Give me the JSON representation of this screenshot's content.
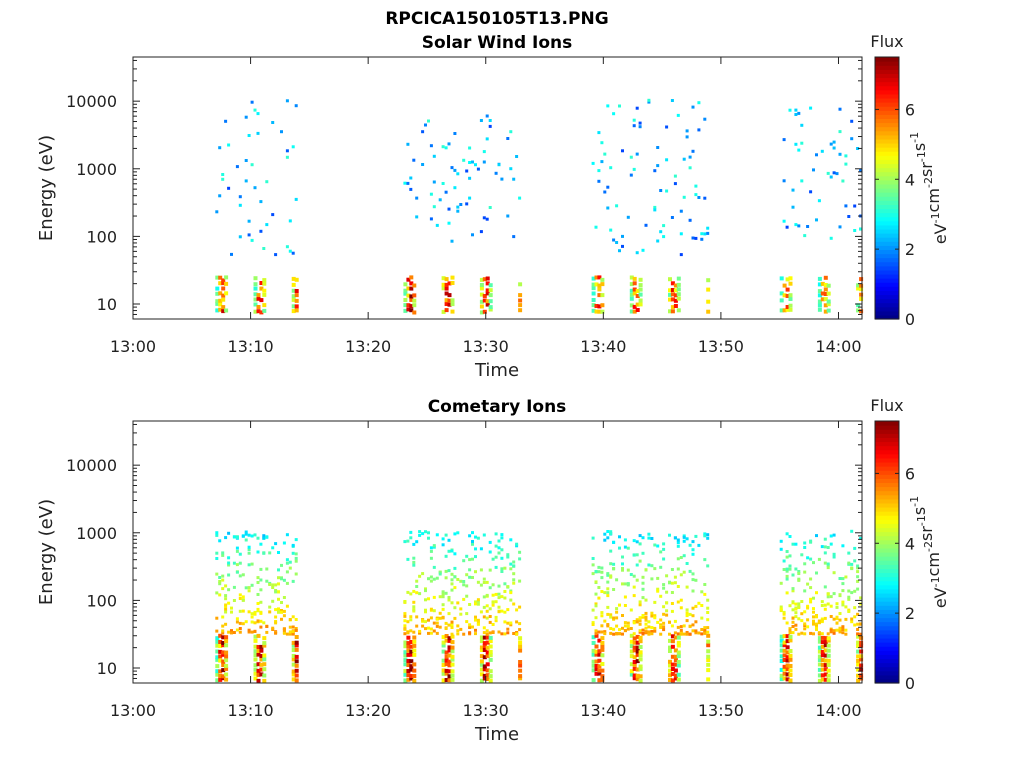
{
  "figure_title": "RPCICA150105T13.PNG",
  "chart_data": [
    {
      "type": "heatmap",
      "title": "Solar Wind Ions",
      "xlabel": "Time",
      "ylabel": "Energy (eV)",
      "y_scale": "log",
      "ylim": [
        6,
        45000
      ],
      "xlim": [
        "13:00",
        "14:02"
      ],
      "x_ticks": [
        "13:00",
        "13:10",
        "13:20",
        "13:30",
        "13:40",
        "13:50",
        "14:00"
      ],
      "y_ticks": [
        "10",
        "100",
        "1000",
        "10000"
      ],
      "colorbar": {
        "title": "Flux",
        "label": "eV-1cm-2sr-1s-1",
        "range": [
          0,
          7.5
        ],
        "ticks": [
          "0",
          "2",
          "4",
          "6"
        ],
        "colormap": "jet"
      },
      "grid": false,
      "bursts": [
        {
          "t_start": "13:07",
          "t_end": "13:14",
          "high_flux_e_range": [
            7,
            25
          ],
          "max_flux": 6.5,
          "scatter_e_range": [
            50,
            10000
          ]
        },
        {
          "t_start": "13:23",
          "t_end": "13:33",
          "high_flux_e_range": [
            7,
            25
          ],
          "max_flux": 7,
          "scatter_e_range": [
            80,
            8000
          ]
        },
        {
          "t_start": "13:39",
          "t_end": "13:49",
          "high_flux_e_range": [
            7,
            25
          ],
          "max_flux": 6.5,
          "scatter_e_range": [
            50,
            10000
          ]
        },
        {
          "t_start": "13:55",
          "t_end": "14:02",
          "high_flux_e_range": [
            7,
            25
          ],
          "max_flux": 6,
          "scatter_e_range": [
            80,
            8000
          ]
        }
      ]
    },
    {
      "type": "heatmap",
      "title": "Cometary Ions",
      "xlabel": "Time",
      "ylabel": "Energy (eV)",
      "y_scale": "log",
      "ylim": [
        6,
        45000
      ],
      "xlim": [
        "13:00",
        "14:02"
      ],
      "x_ticks": [
        "13:00",
        "13:10",
        "13:20",
        "13:30",
        "13:40",
        "13:50",
        "14:00"
      ],
      "y_ticks": [
        "10",
        "100",
        "1000",
        "10000"
      ],
      "colorbar": {
        "title": "Flux",
        "label": "eV-1cm-2sr-1s-1",
        "range": [
          0,
          7.5
        ],
        "ticks": [
          "0",
          "2",
          "4",
          "6"
        ],
        "colormap": "jet"
      },
      "grid": false,
      "bursts": [
        {
          "t_start": "13:07",
          "t_end": "13:14",
          "high_flux_e_range": [
            6,
            30
          ],
          "max_flux": 7,
          "scatter_e_range": [
            30,
            1000
          ]
        },
        {
          "t_start": "13:23",
          "t_end": "13:33",
          "high_flux_e_range": [
            6,
            30
          ],
          "max_flux": 7.2,
          "scatter_e_range": [
            30,
            1000
          ]
        },
        {
          "t_start": "13:39",
          "t_end": "13:49",
          "high_flux_e_range": [
            6,
            30
          ],
          "max_flux": 7,
          "scatter_e_range": [
            30,
            1000
          ]
        },
        {
          "t_start": "13:55",
          "t_end": "14:02",
          "high_flux_e_range": [
            6,
            30
          ],
          "max_flux": 6.8,
          "scatter_e_range": [
            30,
            1000
          ]
        }
      ]
    }
  ]
}
